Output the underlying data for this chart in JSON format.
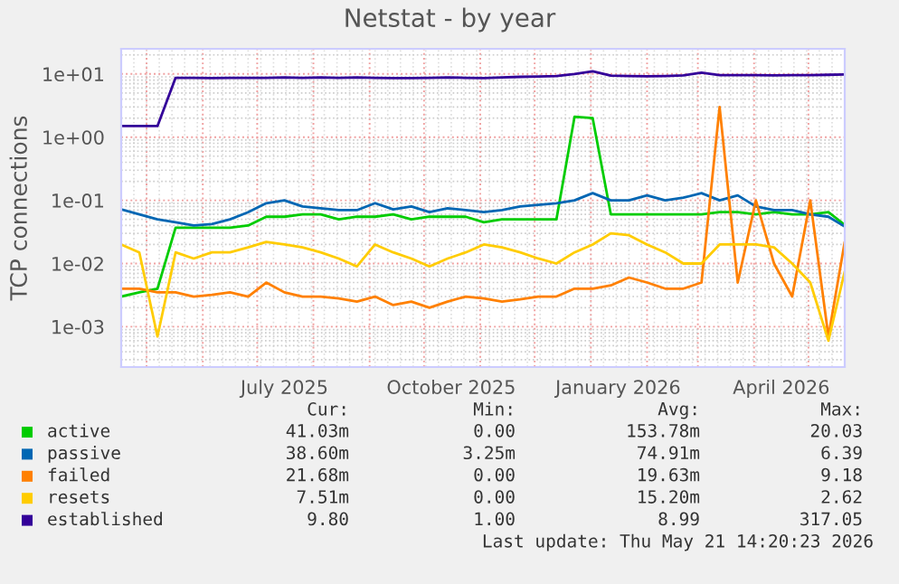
{
  "chart_data": {
    "type": "line",
    "title": "Netstat - by year",
    "ylabel": "TCP connections",
    "x": [
      "2025-04-17",
      "2025-04-27",
      "2025-05-07",
      "2025-05-17",
      "2025-05-27",
      "2025-06-06",
      "2025-06-16",
      "2025-06-26",
      "2025-07-06",
      "2025-07-16",
      "2025-07-26",
      "2025-08-05",
      "2025-08-15",
      "2025-08-25",
      "2025-09-04",
      "2025-09-14",
      "2025-09-24",
      "2025-10-04",
      "2025-10-14",
      "2025-10-24",
      "2025-11-03",
      "2025-11-13",
      "2025-11-23",
      "2025-12-03",
      "2025-12-13",
      "2025-12-23",
      "2026-01-02",
      "2026-01-12",
      "2026-01-22",
      "2026-02-01",
      "2026-02-11",
      "2026-02-21",
      "2026-03-03",
      "2026-03-13",
      "2026-03-23",
      "2026-04-02",
      "2026-04-12",
      "2026-04-22",
      "2026-05-02",
      "2026-05-12",
      "2026-05-21"
    ],
    "series": [
      {
        "name": "active",
        "color": "#00cc00",
        "values": [
          0.003,
          0.0035,
          0.004,
          0.037,
          0.037,
          0.037,
          0.037,
          0.04,
          0.055,
          0.055,
          0.06,
          0.06,
          0.05,
          0.055,
          0.055,
          0.06,
          0.05,
          0.055,
          0.055,
          0.055,
          0.045,
          0.05,
          0.05,
          0.05,
          0.05,
          2.1,
          2.0,
          0.06,
          0.06,
          0.06,
          0.06,
          0.06,
          0.06,
          0.065,
          0.065,
          0.06,
          0.065,
          0.06,
          0.06,
          0.065,
          0.041
        ]
      },
      {
        "name": "passive",
        "color": "#0066b3",
        "values": [
          0.072,
          0.06,
          0.05,
          0.045,
          0.04,
          0.042,
          0.05,
          0.065,
          0.09,
          0.1,
          0.08,
          0.075,
          0.07,
          0.07,
          0.09,
          0.072,
          0.08,
          0.065,
          0.075,
          0.07,
          0.065,
          0.07,
          0.08,
          0.085,
          0.09,
          0.1,
          0.13,
          0.1,
          0.1,
          0.12,
          0.1,
          0.11,
          0.13,
          0.1,
          0.12,
          0.08,
          0.07,
          0.07,
          0.06,
          0.055,
          0.0386
        ]
      },
      {
        "name": "failed",
        "color": "#ff8000",
        "values": [
          0.004,
          0.004,
          0.0035,
          0.0035,
          0.003,
          0.0032,
          0.0035,
          0.003,
          0.005,
          0.0035,
          0.003,
          0.003,
          0.0028,
          0.0025,
          0.003,
          0.0022,
          0.0025,
          0.002,
          0.0025,
          0.003,
          0.0028,
          0.0025,
          0.0027,
          0.003,
          0.003,
          0.004,
          0.004,
          0.0045,
          0.006,
          0.005,
          0.004,
          0.004,
          0.005,
          3.0,
          0.005,
          0.1,
          0.01,
          0.003,
          0.1,
          0.0007,
          0.022
        ]
      },
      {
        "name": "resets",
        "color": "#ffcc00",
        "values": [
          0.02,
          0.015,
          0.0007,
          0.015,
          0.012,
          0.015,
          0.015,
          0.018,
          0.022,
          0.02,
          0.018,
          0.015,
          0.012,
          0.009,
          0.02,
          0.015,
          0.012,
          0.009,
          0.012,
          0.015,
          0.02,
          0.018,
          0.015,
          0.012,
          0.01,
          0.015,
          0.02,
          0.03,
          0.028,
          0.02,
          0.015,
          0.01,
          0.01,
          0.02,
          0.02,
          0.02,
          0.018,
          0.01,
          0.005,
          0.0006,
          0.0075
        ]
      },
      {
        "name": "established",
        "color": "#330099",
        "values": [
          1.5,
          1.5,
          1.5,
          8.7,
          8.7,
          8.6,
          8.7,
          8.7,
          8.7,
          8.8,
          8.7,
          8.8,
          8.7,
          8.8,
          8.7,
          8.6,
          8.6,
          8.7,
          8.8,
          8.7,
          8.6,
          8.8,
          9.0,
          9.1,
          9.3,
          10.0,
          11.0,
          9.4,
          9.3,
          9.2,
          9.3,
          9.5,
          10.5,
          9.6,
          9.6,
          9.6,
          9.5,
          9.6,
          9.6,
          9.7,
          9.8
        ]
      }
    ],
    "log": "y",
    "ylim": [
      0.00023,
      25
    ],
    "yticks": [
      {
        "value": 0.001,
        "label": "1e-03"
      },
      {
        "value": 0.01,
        "label": "1e-02"
      },
      {
        "value": 0.1,
        "label": "1e-01"
      },
      {
        "value": 1,
        "label": "1e+00"
      },
      {
        "value": 10,
        "label": "1e+01"
      }
    ],
    "xlim": [
      "2025-04-17",
      "2026-05-21"
    ],
    "xticks": [
      {
        "value": "2025-05-01",
        "label": null
      },
      {
        "value": "2025-06-01",
        "label": null
      },
      {
        "value": "2025-07-01",
        "label": null
      },
      {
        "value": "2025-07-16",
        "label": "July 2025"
      },
      {
        "value": "2025-08-01",
        "label": null
      },
      {
        "value": "2025-09-01",
        "label": null
      },
      {
        "value": "2025-10-01",
        "label": null
      },
      {
        "value": "2025-10-16",
        "label": "October 2025"
      },
      {
        "value": "2025-11-01",
        "label": null
      },
      {
        "value": "2025-12-01",
        "label": null
      },
      {
        "value": "2026-01-01",
        "label": null
      },
      {
        "value": "2026-01-16",
        "label": "January 2026"
      },
      {
        "value": "2026-02-01",
        "label": null
      },
      {
        "value": "2026-03-01",
        "label": null
      },
      {
        "value": "2026-04-01",
        "label": null
      },
      {
        "value": "2026-04-16",
        "label": "April 2026"
      },
      {
        "value": "2026-05-01",
        "label": null
      }
    ],
    "grid": true,
    "legend": "bottom",
    "annotations": [
      "Cur:",
      "Min:",
      "Avg:",
      "Max:",
      "41.03m",
      "0.00",
      "153.78m",
      "20.03",
      "38.60m",
      "3.25m",
      "74.91m",
      "6.39",
      "21.68m",
      "0.00",
      "19.63m",
      "9.18",
      "7.51m",
      "0.00",
      "15.20m",
      "2.62",
      "9.80",
      "1.00",
      "8.99",
      "317.05",
      "Last update: Thu May 21 14:20:23 2026"
    ]
  }
}
